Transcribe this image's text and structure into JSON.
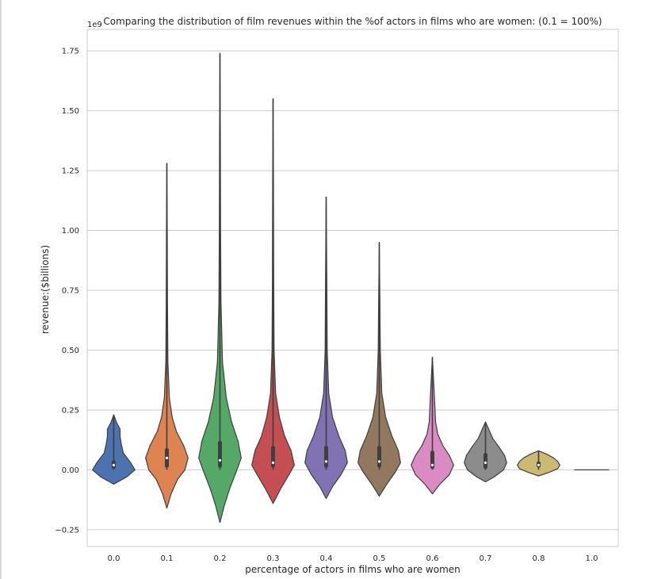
{
  "chart_data": {
    "type": "violin",
    "title": "Comparing the distribution of film revenues within the %of actors in films who are women: (0.1 = 100%)",
    "xlabel": "percentage of actors in films who are women",
    "ylabel": "revenue:($billions)",
    "y_offset_text": "1e9",
    "y_scale": 1000000000,
    "ylim": [
      -0.32,
      1.84
    ],
    "yticks": [
      -0.25,
      0.0,
      0.25,
      0.5,
      0.75,
      1.0,
      1.25,
      1.5,
      1.75
    ],
    "ytick_labels": [
      "−0.25",
      "0.00",
      "0.25",
      "0.50",
      "0.75",
      "1.00",
      "1.25",
      "1.50",
      "1.75"
    ],
    "grid": true,
    "categories": [
      "0.0",
      "0.1",
      "0.2",
      "0.3",
      "0.4",
      "0.5",
      "0.6",
      "0.7",
      "0.8",
      "1.0"
    ],
    "series": [
      {
        "category": "0.0",
        "color": "#4c72b0",
        "min": 0.0,
        "max": 0.23,
        "q1": 0.005,
        "median": 0.02,
        "q3": 0.04,
        "profile": [
          [
            -0.06,
            0
          ],
          [
            -0.03,
            0.6
          ],
          [
            0.0,
            1.0
          ],
          [
            0.03,
            0.8
          ],
          [
            0.07,
            0.45
          ],
          [
            0.11,
            0.35
          ],
          [
            0.14,
            0.3
          ],
          [
            0.17,
            0.3
          ],
          [
            0.2,
            0.12
          ],
          [
            0.23,
            0
          ]
        ]
      },
      {
        "category": "0.1",
        "color": "#dd8452",
        "min": 0.0,
        "max": 1.28,
        "q1": 0.01,
        "median": 0.05,
        "q3": 0.09,
        "profile": [
          [
            -0.16,
            0
          ],
          [
            -0.1,
            0.2
          ],
          [
            -0.04,
            0.5
          ],
          [
            0.0,
            0.85
          ],
          [
            0.05,
            1.0
          ],
          [
            0.1,
            0.8
          ],
          [
            0.16,
            0.45
          ],
          [
            0.22,
            0.25
          ],
          [
            0.3,
            0.12
          ],
          [
            0.45,
            0.05
          ],
          [
            0.7,
            0.03
          ],
          [
            1.0,
            0.02
          ],
          [
            1.28,
            0
          ]
        ]
      },
      {
        "category": "0.2",
        "color": "#55a868",
        "min": 0.0,
        "max": 1.74,
        "q1": 0.01,
        "median": 0.04,
        "q3": 0.12,
        "profile": [
          [
            -0.22,
            0
          ],
          [
            -0.15,
            0.2
          ],
          [
            -0.08,
            0.45
          ],
          [
            0.0,
            0.8
          ],
          [
            0.05,
            1.0
          ],
          [
            0.12,
            0.85
          ],
          [
            0.2,
            0.55
          ],
          [
            0.3,
            0.3
          ],
          [
            0.45,
            0.12
          ],
          [
            0.7,
            0.05
          ],
          [
            1.0,
            0.03
          ],
          [
            1.4,
            0.02
          ],
          [
            1.74,
            0
          ]
        ]
      },
      {
        "category": "0.3",
        "color": "#c44e52",
        "min": 0.0,
        "max": 1.55,
        "q1": 0.01,
        "median": 0.03,
        "q3": 0.1,
        "profile": [
          [
            -0.14,
            0
          ],
          [
            -0.08,
            0.35
          ],
          [
            -0.02,
            0.75
          ],
          [
            0.02,
            1.0
          ],
          [
            0.08,
            0.85
          ],
          [
            0.14,
            0.55
          ],
          [
            0.22,
            0.3
          ],
          [
            0.32,
            0.12
          ],
          [
            0.5,
            0.05
          ],
          [
            0.8,
            0.03
          ],
          [
            1.2,
            0.02
          ],
          [
            1.55,
            0
          ]
        ]
      },
      {
        "category": "0.4",
        "color": "#8172b3",
        "min": 0.0,
        "max": 1.14,
        "q1": 0.01,
        "median": 0.035,
        "q3": 0.1,
        "profile": [
          [
            -0.12,
            0
          ],
          [
            -0.07,
            0.3
          ],
          [
            -0.02,
            0.7
          ],
          [
            0.03,
            1.0
          ],
          [
            0.08,
            0.9
          ],
          [
            0.14,
            0.6
          ],
          [
            0.22,
            0.3
          ],
          [
            0.32,
            0.12
          ],
          [
            0.5,
            0.05
          ],
          [
            0.8,
            0.03
          ],
          [
            1.14,
            0
          ]
        ]
      },
      {
        "category": "0.5",
        "color": "#937860",
        "min": 0.0,
        "max": 0.95,
        "q1": 0.01,
        "median": 0.035,
        "q3": 0.1,
        "profile": [
          [
            -0.11,
            0
          ],
          [
            -0.06,
            0.35
          ],
          [
            -0.01,
            0.75
          ],
          [
            0.03,
            1.0
          ],
          [
            0.08,
            0.9
          ],
          [
            0.14,
            0.6
          ],
          [
            0.22,
            0.3
          ],
          [
            0.32,
            0.12
          ],
          [
            0.5,
            0.05
          ],
          [
            0.7,
            0.03
          ],
          [
            0.95,
            0
          ]
        ]
      },
      {
        "category": "0.6",
        "color": "#da8bc3",
        "min": 0.0,
        "max": 0.47,
        "q1": 0.005,
        "median": 0.02,
        "q3": 0.08,
        "profile": [
          [
            -0.1,
            0
          ],
          [
            -0.06,
            0.35
          ],
          [
            -0.02,
            0.8
          ],
          [
            0.02,
            1.0
          ],
          [
            0.06,
            0.8
          ],
          [
            0.1,
            0.5
          ],
          [
            0.15,
            0.25
          ],
          [
            0.2,
            0.15
          ],
          [
            0.26,
            0.12
          ],
          [
            0.35,
            0.07
          ],
          [
            0.47,
            0
          ]
        ]
      },
      {
        "category": "0.7",
        "color": "#8c8c8c",
        "min": 0.0,
        "max": 0.2,
        "q1": 0.005,
        "median": 0.03,
        "q3": 0.07,
        "profile": [
          [
            -0.05,
            0
          ],
          [
            -0.03,
            0.4
          ],
          [
            0.0,
            0.85
          ],
          [
            0.03,
            1.0
          ],
          [
            0.06,
            0.9
          ],
          [
            0.1,
            0.6
          ],
          [
            0.13,
            0.35
          ],
          [
            0.16,
            0.2
          ],
          [
            0.2,
            0
          ]
        ]
      },
      {
        "category": "0.8",
        "color": "#ccb974",
        "min": 0.0,
        "max": 0.08,
        "q1": 0.01,
        "median": 0.02,
        "q3": 0.035,
        "profile": [
          [
            -0.025,
            0
          ],
          [
            -0.01,
            0.5
          ],
          [
            0.005,
            0.9
          ],
          [
            0.02,
            1.0
          ],
          [
            0.035,
            0.9
          ],
          [
            0.05,
            0.7
          ],
          [
            0.065,
            0.4
          ],
          [
            0.08,
            0
          ]
        ]
      },
      {
        "category": "1.0",
        "color": "#64b5cd",
        "min": 0.0,
        "max": 0.0,
        "q1": 0.0,
        "median": 0.0,
        "q3": 0.0,
        "profile": []
      }
    ]
  }
}
